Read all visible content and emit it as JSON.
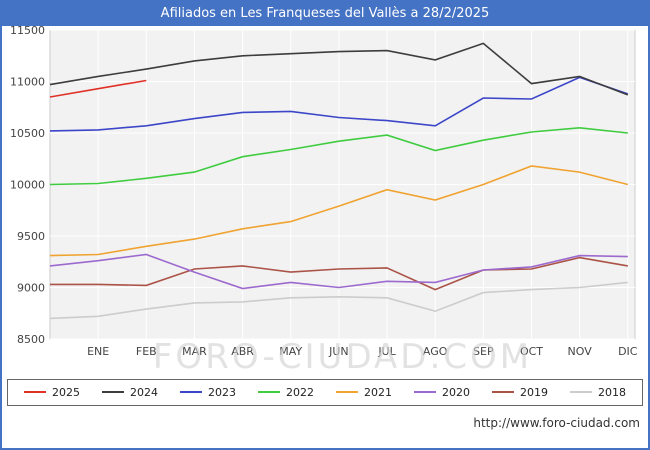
{
  "header": {
    "title": "Afiliados en Les Franqueses del Vallès a 28/2/2025"
  },
  "watermark": "FORO-CIUDAD.COM",
  "footer": {
    "url": "http://www.foro-ciudad.com"
  },
  "colors": {
    "titlebar": "#4472c4",
    "plot_bg": "#f2f2f2",
    "grid": "#ffffff",
    "plot_border": "#cccccc",
    "tick_text": "#444444"
  },
  "chart_data": {
    "type": "line",
    "title": "Afiliados en Les Franqueses del Vallès a 28/2/2025",
    "xlabel": "",
    "ylabel": "",
    "ylim": [
      8500,
      11500
    ],
    "yticks": [
      8500,
      9000,
      9500,
      10000,
      10500,
      11000,
      11500
    ],
    "grid": true,
    "legend_position": "bottom",
    "months": [
      "ENE",
      "FEB",
      "MAR",
      "ABR",
      "MAY",
      "JUN",
      "JUL",
      "AGO",
      "SEP",
      "OCT",
      "NOV",
      "DIC"
    ],
    "series": [
      {
        "name": "2025",
        "color": "#e03127",
        "start": 10850,
        "values": [
          10930,
          11010
        ]
      },
      {
        "name": "2024",
        "color": "#3d3d3d",
        "start": 10970,
        "values": [
          11050,
          11120,
          11200,
          11250,
          11270,
          11290,
          11300,
          11210,
          11370,
          10980,
          11050,
          10870
        ]
      },
      {
        "name": "2023",
        "color": "#3c46c8",
        "start": 10520,
        "values": [
          10530,
          10570,
          10640,
          10700,
          10710,
          10650,
          10620,
          10570,
          10840,
          10830,
          11040,
          10880
        ]
      },
      {
        "name": "2022",
        "color": "#40cc40",
        "start": 10000,
        "values": [
          10010,
          10060,
          10120,
          10270,
          10340,
          10420,
          10480,
          10330,
          10430,
          10510,
          10550,
          10500
        ]
      },
      {
        "name": "2021",
        "color": "#f0a330",
        "start": 9310,
        "values": [
          9320,
          9400,
          9470,
          9570,
          9640,
          9790,
          9950,
          9850,
          10000,
          10180,
          10120,
          10000
        ]
      },
      {
        "name": "2020",
        "color": "#9c6ace",
        "start": 9210,
        "values": [
          9260,
          9320,
          9150,
          8990,
          9050,
          9000,
          9060,
          9050,
          9170,
          9200,
          9310,
          9300
        ]
      },
      {
        "name": "2019",
        "color": "#ab5347",
        "start": 9030,
        "values": [
          9030,
          9020,
          9180,
          9210,
          9150,
          9180,
          9190,
          8980,
          9170,
          9180,
          9290,
          9210
        ]
      },
      {
        "name": "2018",
        "color": "#cccccc",
        "start": 8700,
        "values": [
          8720,
          8790,
          8850,
          8860,
          8900,
          8910,
          8900,
          8770,
          8950,
          8980,
          9000,
          9050
        ]
      }
    ]
  }
}
